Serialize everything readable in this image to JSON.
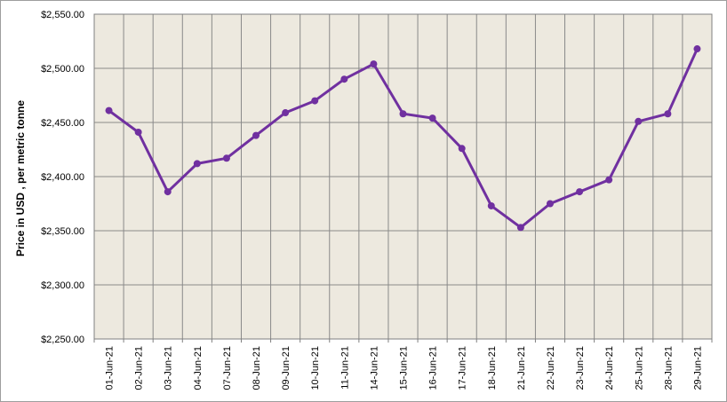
{
  "chart_data": {
    "type": "line",
    "title": "",
    "xlabel": "",
    "ylabel": "Price in USD , per metric tonne",
    "ylim": [
      2250,
      2550
    ],
    "yticks": [
      2250,
      2300,
      2350,
      2400,
      2450,
      2500,
      2550
    ],
    "ytick_labels": [
      "$2,250.00",
      "$2,300.00",
      "$2,350.00",
      "$2,400.00",
      "$2,450.00",
      "$2,500.00",
      "$2,550.00"
    ],
    "grid": true,
    "legend": "none",
    "colors": {
      "plot_bg": "#ede9df",
      "grid": "#8a8a8a",
      "line": "#7030a0"
    },
    "categories": [
      "01-Jun-21",
      "02-Jun-21",
      "03-Jun-21",
      "04-Jun-21",
      "07-Jun-21",
      "08-Jun-21",
      "09-Jun-21",
      "10-Jun-21",
      "11-Jun-21",
      "14-Jun-21",
      "15-Jun-21",
      "16-Jun-21",
      "17-Jun-21",
      "18-Jun-21",
      "21-Jun-21",
      "22-Jun-21",
      "23-Jun-21",
      "24-Jun-21",
      "25-Jun-21",
      "28-Jun-21",
      "29-Jun-21"
    ],
    "series": [
      {
        "values": [
          2461,
          2441,
          2386,
          2412,
          2417,
          2438,
          2459,
          2470,
          2490,
          2504,
          2458,
          2454,
          2426,
          2373,
          2353,
          2375,
          2386,
          2397,
          2451,
          2458,
          2518
        ]
      }
    ]
  }
}
